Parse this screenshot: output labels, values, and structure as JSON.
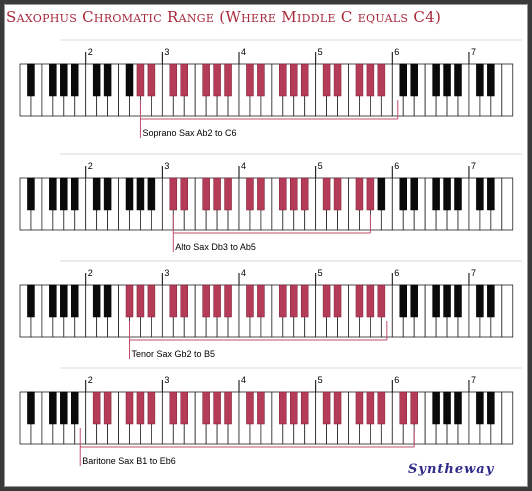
{
  "title": "Saxophus Chromatic Range (Where Middle C equals C4)",
  "brand": "Syntheway",
  "octave_numbers": [
    "2",
    "3",
    "4",
    "5",
    "6",
    "7"
  ],
  "colors": {
    "highlight": "#b43c58",
    "highlight_line": "#c0506a",
    "black_key": "#0a0a0a",
    "white_key": "#ffffff",
    "title": "#a8283b",
    "brand": "#2d2a8a"
  },
  "instruments": [
    {
      "label": "Soprano Sax Ab2 to C6",
      "low": "Ab2",
      "high": "C6"
    },
    {
      "label": "Alto Sax Db3 to Ab5",
      "low": "Db3",
      "high": "Ab5"
    },
    {
      "label": "Tenor Sax Gb2 to B5",
      "low": "Gb2",
      "high": "B5"
    },
    {
      "label": "Baritone Sax B1 to Eb6",
      "low": "B1",
      "high": "Eb6"
    }
  ]
}
